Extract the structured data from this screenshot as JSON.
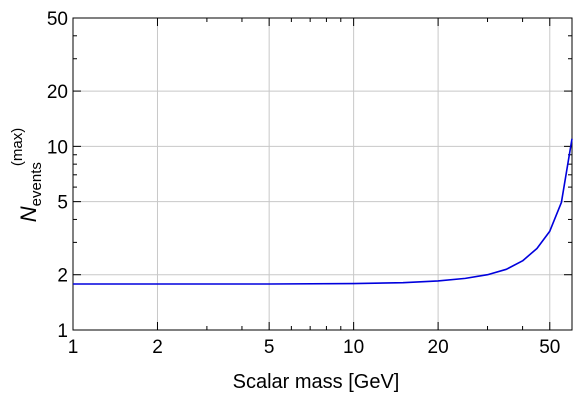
{
  "chart_data": {
    "type": "line",
    "xlabel": "Scalar mass [GeV]",
    "ylabel": {
      "main": "N",
      "subscript": "events",
      "superscript": "(max)"
    },
    "x_scale": "log",
    "y_scale": "log",
    "xlim": [
      1,
      60
    ],
    "ylim": [
      1,
      50
    ],
    "x_ticks": [
      1,
      2,
      5,
      10,
      20,
      50
    ],
    "y_ticks": [
      1,
      2,
      5,
      10,
      20,
      50
    ],
    "grid": true,
    "line_color": "#0000dd",
    "series": [
      {
        "x": [
          1,
          2,
          5,
          10,
          15,
          20,
          25,
          30,
          35,
          40,
          45,
          50,
          55,
          60
        ],
        "y": [
          1.78,
          1.78,
          1.78,
          1.79,
          1.81,
          1.85,
          1.91,
          2.0,
          2.14,
          2.38,
          2.78,
          3.45,
          4.95,
          11.0
        ]
      }
    ]
  }
}
